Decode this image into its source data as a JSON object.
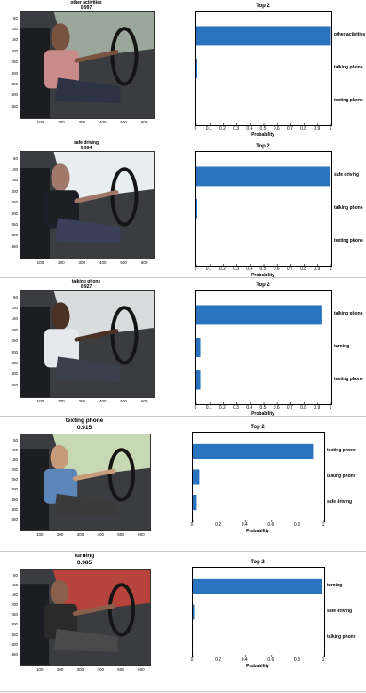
{
  "colors": {
    "bar": "#2a74bf"
  },
  "chart_data": [
    {
      "type": "bar",
      "image_title": "other activities",
      "image_score": "0.997",
      "title": "Top 2",
      "xlabel": "Probability",
      "categories": [
        "other activities",
        "talking phone",
        "texting phone"
      ],
      "values": [
        0.997,
        0.003,
        0.0
      ],
      "xlim": [
        0,
        1
      ],
      "xticks": [
        "0",
        "0.1",
        "0.2",
        "0.3",
        "0.4",
        "0.5",
        "0.6",
        "0.7",
        "0.8",
        "0.9",
        "1"
      ],
      "img_xticks": [
        "100",
        "200",
        "300",
        "400",
        "500",
        "600"
      ],
      "img_yticks": [
        "50",
        "100",
        "150",
        "200",
        "250",
        "300",
        "350",
        "400",
        "450"
      ]
    },
    {
      "type": "bar",
      "image_title": "safe driving",
      "image_score": "0.994",
      "title": "Top 2",
      "xlabel": "Probability",
      "categories": [
        "safe driving",
        "talking phone",
        "texting phone"
      ],
      "values": [
        0.994,
        0.004,
        0.0
      ],
      "xlim": [
        0,
        1
      ],
      "xticks": [
        "0",
        "0.1",
        "0.2",
        "0.3",
        "0.4",
        "0.5",
        "0.6",
        "0.7",
        "0.8",
        "0.9",
        "1"
      ],
      "img_xticks": [
        "100",
        "200",
        "300",
        "400",
        "500",
        "600"
      ],
      "img_yticks": [
        "50",
        "100",
        "150",
        "200",
        "250",
        "300",
        "350",
        "400",
        "450"
      ]
    },
    {
      "type": "bar",
      "image_title": "talking phone",
      "image_score": "0.927",
      "title": "Top 2",
      "xlabel": "Probability",
      "categories": [
        "talking phone",
        "turning",
        "texting phone"
      ],
      "values": [
        0.927,
        0.03,
        0.03
      ],
      "xlim": [
        0,
        1
      ],
      "xticks": [
        "0",
        "0.1",
        "0.2",
        "0.3",
        "0.4",
        "0.5",
        "0.6",
        "0.7",
        "0.8",
        "0.9",
        "1"
      ],
      "img_xticks": [
        "100",
        "200",
        "300",
        "400",
        "500",
        "600"
      ],
      "img_yticks": [
        "50",
        "100",
        "150",
        "200",
        "250",
        "300",
        "350",
        "400",
        "450"
      ]
    },
    {
      "type": "bar",
      "image_title": "texting phone",
      "image_score": "0.915",
      "title": "Top 2",
      "xlabel": "Probability",
      "categories": [
        "texting phone",
        "talking phone",
        "safe driving"
      ],
      "values": [
        0.915,
        0.05,
        0.03
      ],
      "xlim": [
        0,
        1
      ],
      "xticks": [
        "0",
        "0.2",
        "0.4",
        "0.6",
        "0.8",
        "1"
      ],
      "img_xticks": [
        "100",
        "200",
        "300",
        "400",
        "500",
        "600"
      ],
      "img_yticks": [
        "50",
        "100",
        "150",
        "200",
        "250",
        "300",
        "350",
        "400",
        "450"
      ]
    },
    {
      "type": "bar",
      "image_title": "turning",
      "image_score": "0.985",
      "title": "Top 2",
      "xlabel": "Probability",
      "categories": [
        "turning",
        "safe driving",
        "talking phone"
      ],
      "values": [
        0.985,
        0.01,
        0.0
      ],
      "xlim": [
        0,
        1
      ],
      "xticks": [
        "0",
        "0.2",
        "0.4",
        "0.6",
        "0.8",
        "1"
      ],
      "img_xticks": [
        "100",
        "200",
        "300",
        "400",
        "500",
        "600"
      ],
      "img_yticks": [
        "50",
        "100",
        "150",
        "200",
        "250",
        "300",
        "350",
        "400",
        "450"
      ]
    }
  ]
}
